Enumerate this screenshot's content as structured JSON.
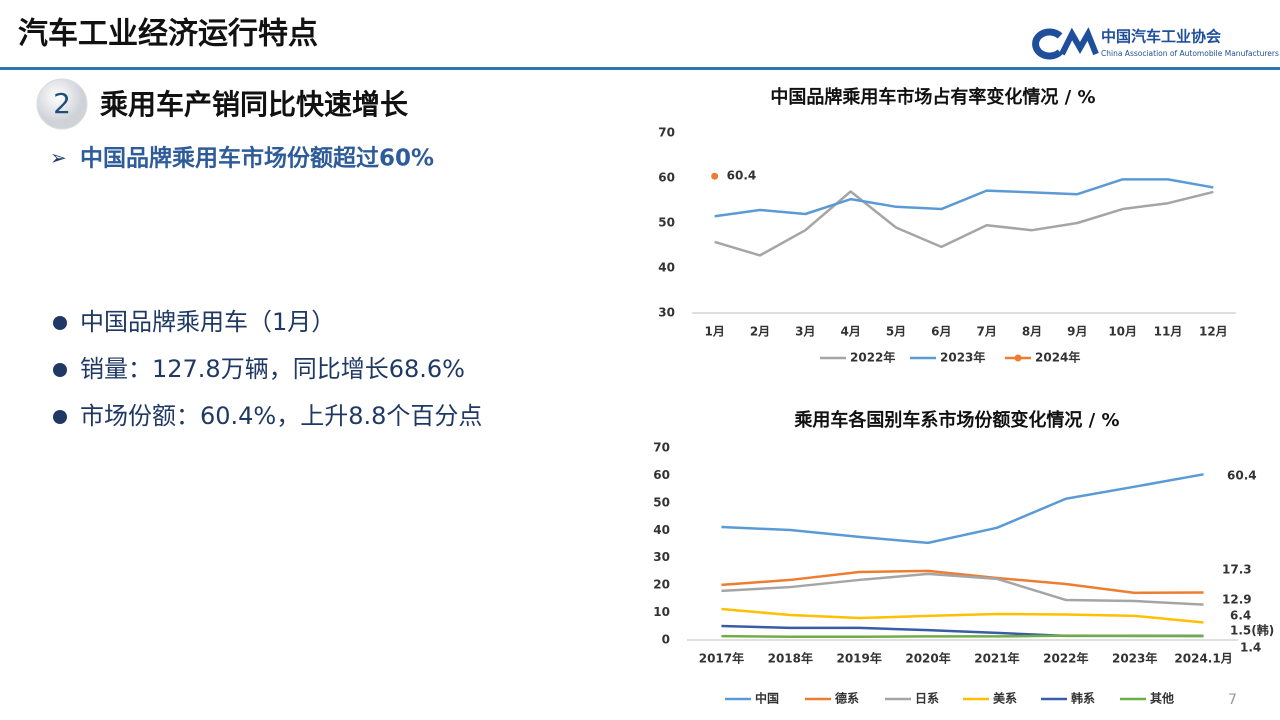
{
  "header": {
    "title": "汽车工业经济运行特点",
    "logo_name": "中国汽车工业协会",
    "logo_english": "China Association of Automobile Manufacturers"
  },
  "section": {
    "number": "2",
    "title": "乘用车产销同比快速增长",
    "subtitle": "中国品牌乘用车市场份额超过60%",
    "bullets": [
      "中国品牌乘用车（1月）",
      "销量：127.8万辆，同比增长68.6%",
      "市场份额：60.4%，上升8.8个百分点"
    ]
  },
  "page_number": "7",
  "chart_data": [
    {
      "type": "line",
      "title": "中国品牌乘用车市场占有率变化情况 / %",
      "categories": [
        "1月",
        "2月",
        "3月",
        "4月",
        "5月",
        "6月",
        "7月",
        "8月",
        "9月",
        "10月",
        "11月",
        "12月"
      ],
      "series": [
        {
          "name": "2022年",
          "color": "#a5a5a5",
          "values": [
            45.8,
            42.8,
            48.4,
            57.0,
            49.0,
            44.7,
            49.5,
            48.4,
            50.0,
            53.1,
            54.4,
            56.9
          ]
        },
        {
          "name": "2023年",
          "color": "#5b9bd5",
          "values": [
            51.5,
            52.9,
            52.0,
            55.3,
            53.6,
            53.1,
            57.2,
            56.8,
            56.4,
            59.7,
            59.7,
            57.9
          ]
        },
        {
          "name": "2024年",
          "color": "#ed7d31",
          "marker": "circle",
          "values": [
            60.4,
            null,
            null,
            null,
            null,
            null,
            null,
            null,
            null,
            null,
            null,
            null
          ],
          "value_labels": [
            "60.4",
            null,
            null,
            null,
            null,
            null,
            null,
            null,
            null,
            null,
            null,
            null
          ]
        }
      ],
      "ylim": [
        30,
        70
      ],
      "yticks": [
        30,
        40,
        50,
        60,
        70
      ],
      "grid": false,
      "legend": "bottom"
    },
    {
      "type": "line",
      "title": "乘用车各国别车系市场份额变化情况 / %",
      "categories": [
        "2017年",
        "2018年",
        "2019年",
        "2020年",
        "2021年",
        "2022年",
        "2023年",
        "2024.1月"
      ],
      "series": [
        {
          "name": "中国",
          "color": "#5b9bd5",
          "values": [
            41.2,
            40.1,
            37.6,
            35.4,
            40.9,
            51.5,
            55.9,
            60.4
          ],
          "value_labels": [
            null,
            null,
            null,
            null,
            null,
            null,
            null,
            "60.4"
          ]
        },
        {
          "name": "德系",
          "color": "#ed7d31",
          "values": [
            20.1,
            21.9,
            24.8,
            25.2,
            22.6,
            20.4,
            17.2,
            17.3
          ],
          "value_labels": [
            null,
            null,
            null,
            null,
            null,
            null,
            null,
            "17.3"
          ]
        },
        {
          "name": "日系",
          "color": "#a5a5a5",
          "values": [
            17.9,
            19.3,
            21.9,
            24.1,
            22.3,
            14.6,
            14.2,
            12.9
          ],
          "value_labels": [
            null,
            null,
            null,
            null,
            null,
            null,
            null,
            "12.9"
          ]
        },
        {
          "name": "美系",
          "color": "#ffc000",
          "values": [
            11.3,
            9.1,
            8.0,
            8.8,
            9.5,
            9.3,
            8.8,
            6.4
          ],
          "value_labels": [
            null,
            null,
            null,
            null,
            null,
            null,
            null,
            "6.4"
          ]
        },
        {
          "name": "韩系",
          "color": "#3a5ba8",
          "values": [
            5.1,
            4.4,
            4.4,
            3.6,
            2.6,
            1.5,
            1.5,
            1.5
          ],
          "value_labels": [
            null,
            null,
            null,
            null,
            null,
            null,
            null,
            "1.5(韩)"
          ]
        },
        {
          "name": "其他",
          "color": "#70ad47",
          "values": [
            1.4,
            1.2,
            1.2,
            1.3,
            1.3,
            1.6,
            1.5,
            1.4
          ],
          "value_labels": [
            null,
            null,
            null,
            null,
            null,
            null,
            null,
            "1.4"
          ]
        }
      ],
      "ylim": [
        0,
        70
      ],
      "yticks": [
        0,
        10,
        20,
        30,
        40,
        50,
        60,
        70
      ],
      "grid": false,
      "legend": "bottom"
    }
  ]
}
